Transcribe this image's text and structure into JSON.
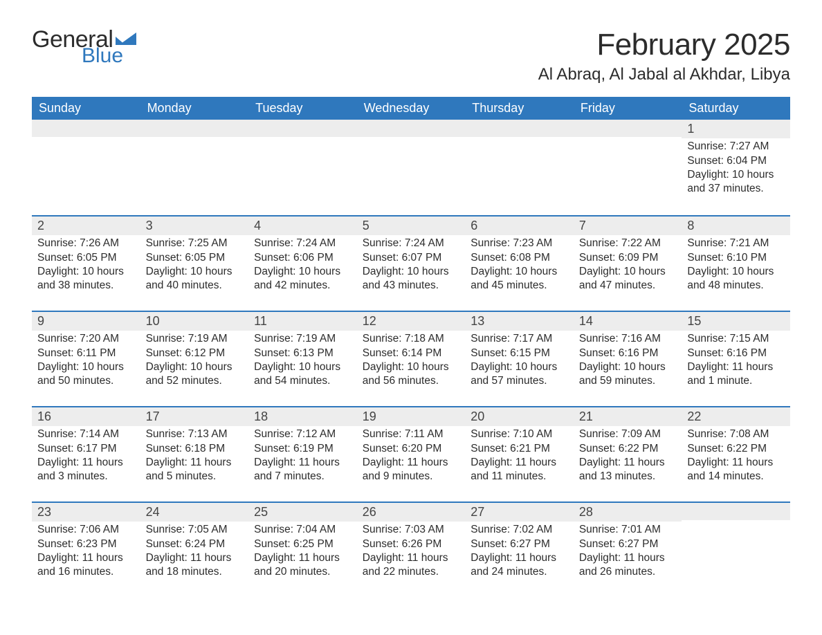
{
  "logo": {
    "word1": "General",
    "word2": "Blue"
  },
  "title": "February 2025",
  "location": "Al Abraq, Al Jabal al Akhdar, Libya",
  "colors": {
    "header_bg": "#2f78bd",
    "header_text": "#ffffff",
    "date_band_bg": "#ededed",
    "text": "#2c2c2c",
    "row_divider": "#2f78bd",
    "logo_dark": "#2c2c2c",
    "logo_blue": "#2f78bd",
    "page_bg": "#ffffff"
  },
  "day_names": [
    "Sunday",
    "Monday",
    "Tuesday",
    "Wednesday",
    "Thursday",
    "Friday",
    "Saturday"
  ],
  "weeks": [
    [
      null,
      null,
      null,
      null,
      null,
      null,
      {
        "date": "1",
        "sunrise": "Sunrise: 7:27 AM",
        "sunset": "Sunset: 6:04 PM",
        "daylight1": "Daylight: 10 hours",
        "daylight2": "and 37 minutes."
      }
    ],
    [
      {
        "date": "2",
        "sunrise": "Sunrise: 7:26 AM",
        "sunset": "Sunset: 6:05 PM",
        "daylight1": "Daylight: 10 hours",
        "daylight2": "and 38 minutes."
      },
      {
        "date": "3",
        "sunrise": "Sunrise: 7:25 AM",
        "sunset": "Sunset: 6:05 PM",
        "daylight1": "Daylight: 10 hours",
        "daylight2": "and 40 minutes."
      },
      {
        "date": "4",
        "sunrise": "Sunrise: 7:24 AM",
        "sunset": "Sunset: 6:06 PM",
        "daylight1": "Daylight: 10 hours",
        "daylight2": "and 42 minutes."
      },
      {
        "date": "5",
        "sunrise": "Sunrise: 7:24 AM",
        "sunset": "Sunset: 6:07 PM",
        "daylight1": "Daylight: 10 hours",
        "daylight2": "and 43 minutes."
      },
      {
        "date": "6",
        "sunrise": "Sunrise: 7:23 AM",
        "sunset": "Sunset: 6:08 PM",
        "daylight1": "Daylight: 10 hours",
        "daylight2": "and 45 minutes."
      },
      {
        "date": "7",
        "sunrise": "Sunrise: 7:22 AM",
        "sunset": "Sunset: 6:09 PM",
        "daylight1": "Daylight: 10 hours",
        "daylight2": "and 47 minutes."
      },
      {
        "date": "8",
        "sunrise": "Sunrise: 7:21 AM",
        "sunset": "Sunset: 6:10 PM",
        "daylight1": "Daylight: 10 hours",
        "daylight2": "and 48 minutes."
      }
    ],
    [
      {
        "date": "9",
        "sunrise": "Sunrise: 7:20 AM",
        "sunset": "Sunset: 6:11 PM",
        "daylight1": "Daylight: 10 hours",
        "daylight2": "and 50 minutes."
      },
      {
        "date": "10",
        "sunrise": "Sunrise: 7:19 AM",
        "sunset": "Sunset: 6:12 PM",
        "daylight1": "Daylight: 10 hours",
        "daylight2": "and 52 minutes."
      },
      {
        "date": "11",
        "sunrise": "Sunrise: 7:19 AM",
        "sunset": "Sunset: 6:13 PM",
        "daylight1": "Daylight: 10 hours",
        "daylight2": "and 54 minutes."
      },
      {
        "date": "12",
        "sunrise": "Sunrise: 7:18 AM",
        "sunset": "Sunset: 6:14 PM",
        "daylight1": "Daylight: 10 hours",
        "daylight2": "and 56 minutes."
      },
      {
        "date": "13",
        "sunrise": "Sunrise: 7:17 AM",
        "sunset": "Sunset: 6:15 PM",
        "daylight1": "Daylight: 10 hours",
        "daylight2": "and 57 minutes."
      },
      {
        "date": "14",
        "sunrise": "Sunrise: 7:16 AM",
        "sunset": "Sunset: 6:16 PM",
        "daylight1": "Daylight: 10 hours",
        "daylight2": "and 59 minutes."
      },
      {
        "date": "15",
        "sunrise": "Sunrise: 7:15 AM",
        "sunset": "Sunset: 6:16 PM",
        "daylight1": "Daylight: 11 hours",
        "daylight2": "and 1 minute."
      }
    ],
    [
      {
        "date": "16",
        "sunrise": "Sunrise: 7:14 AM",
        "sunset": "Sunset: 6:17 PM",
        "daylight1": "Daylight: 11 hours",
        "daylight2": "and 3 minutes."
      },
      {
        "date": "17",
        "sunrise": "Sunrise: 7:13 AM",
        "sunset": "Sunset: 6:18 PM",
        "daylight1": "Daylight: 11 hours",
        "daylight2": "and 5 minutes."
      },
      {
        "date": "18",
        "sunrise": "Sunrise: 7:12 AM",
        "sunset": "Sunset: 6:19 PM",
        "daylight1": "Daylight: 11 hours",
        "daylight2": "and 7 minutes."
      },
      {
        "date": "19",
        "sunrise": "Sunrise: 7:11 AM",
        "sunset": "Sunset: 6:20 PM",
        "daylight1": "Daylight: 11 hours",
        "daylight2": "and 9 minutes."
      },
      {
        "date": "20",
        "sunrise": "Sunrise: 7:10 AM",
        "sunset": "Sunset: 6:21 PM",
        "daylight1": "Daylight: 11 hours",
        "daylight2": "and 11 minutes."
      },
      {
        "date": "21",
        "sunrise": "Sunrise: 7:09 AM",
        "sunset": "Sunset: 6:22 PM",
        "daylight1": "Daylight: 11 hours",
        "daylight2": "and 13 minutes."
      },
      {
        "date": "22",
        "sunrise": "Sunrise: 7:08 AM",
        "sunset": "Sunset: 6:22 PM",
        "daylight1": "Daylight: 11 hours",
        "daylight2": "and 14 minutes."
      }
    ],
    [
      {
        "date": "23",
        "sunrise": "Sunrise: 7:06 AM",
        "sunset": "Sunset: 6:23 PM",
        "daylight1": "Daylight: 11 hours",
        "daylight2": "and 16 minutes."
      },
      {
        "date": "24",
        "sunrise": "Sunrise: 7:05 AM",
        "sunset": "Sunset: 6:24 PM",
        "daylight1": "Daylight: 11 hours",
        "daylight2": "and 18 minutes."
      },
      {
        "date": "25",
        "sunrise": "Sunrise: 7:04 AM",
        "sunset": "Sunset: 6:25 PM",
        "daylight1": "Daylight: 11 hours",
        "daylight2": "and 20 minutes."
      },
      {
        "date": "26",
        "sunrise": "Sunrise: 7:03 AM",
        "sunset": "Sunset: 6:26 PM",
        "daylight1": "Daylight: 11 hours",
        "daylight2": "and 22 minutes."
      },
      {
        "date": "27",
        "sunrise": "Sunrise: 7:02 AM",
        "sunset": "Sunset: 6:27 PM",
        "daylight1": "Daylight: 11 hours",
        "daylight2": "and 24 minutes."
      },
      {
        "date": "28",
        "sunrise": "Sunrise: 7:01 AM",
        "sunset": "Sunset: 6:27 PM",
        "daylight1": "Daylight: 11 hours",
        "daylight2": "and 26 minutes."
      },
      null
    ]
  ]
}
